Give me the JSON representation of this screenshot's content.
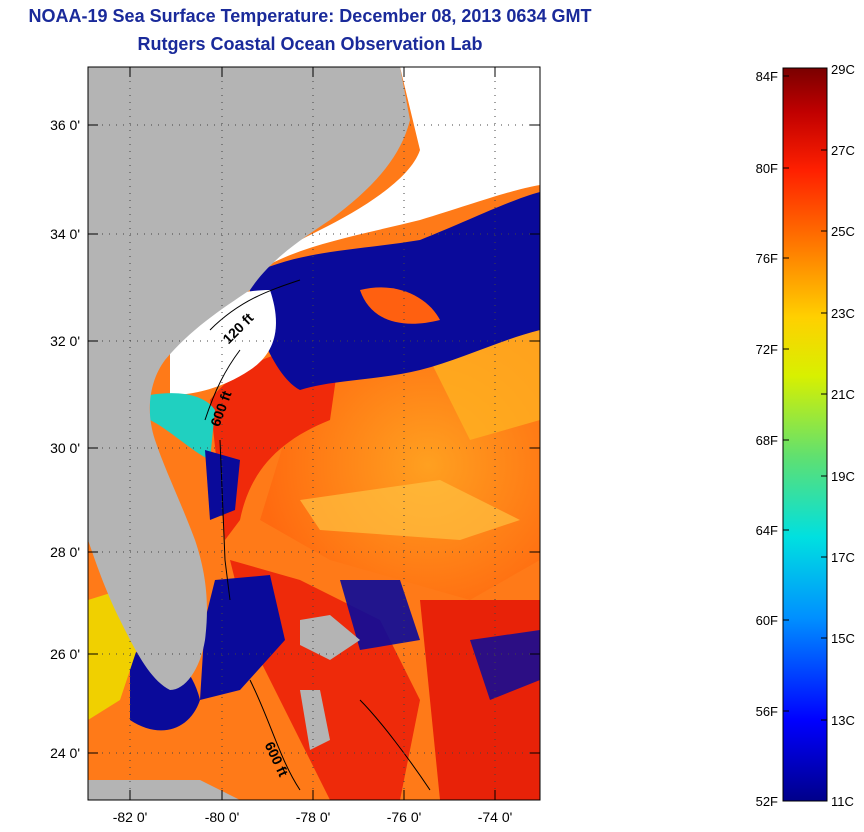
{
  "header": {
    "title": "NOAA-19 Sea Surface Temperature:  December 08, 2013 0634 GMT",
    "subtitle": "Rutgers Coastal Ocean Observation Lab"
  },
  "map": {
    "lat_labels": [
      "36 0'",
      "34 0'",
      "32 0'",
      "30 0'",
      "28 0'",
      "26 0'",
      "24 0'"
    ],
    "lon_labels": [
      "-82 0'",
      "-80 0'",
      "-78 0'",
      "-76 0'",
      "-74 0'"
    ],
    "contour_labels": [
      "120 ft",
      "600 ft",
      "600 ft"
    ],
    "colors": {
      "land": "#b4b4b4",
      "cloud": "#ffffff",
      "cold": "#0a0a9a"
    }
  },
  "colorbar": {
    "fahrenheit": [
      "84F",
      "80F",
      "76F",
      "72F",
      "68F",
      "64F",
      "60F",
      "56F",
      "52F"
    ],
    "celsius": [
      "29C",
      "27C",
      "25C",
      "23C",
      "21C",
      "19C",
      "17C",
      "15C",
      "13C",
      "11C"
    ],
    "range_c": [
      11,
      29
    ]
  }
}
